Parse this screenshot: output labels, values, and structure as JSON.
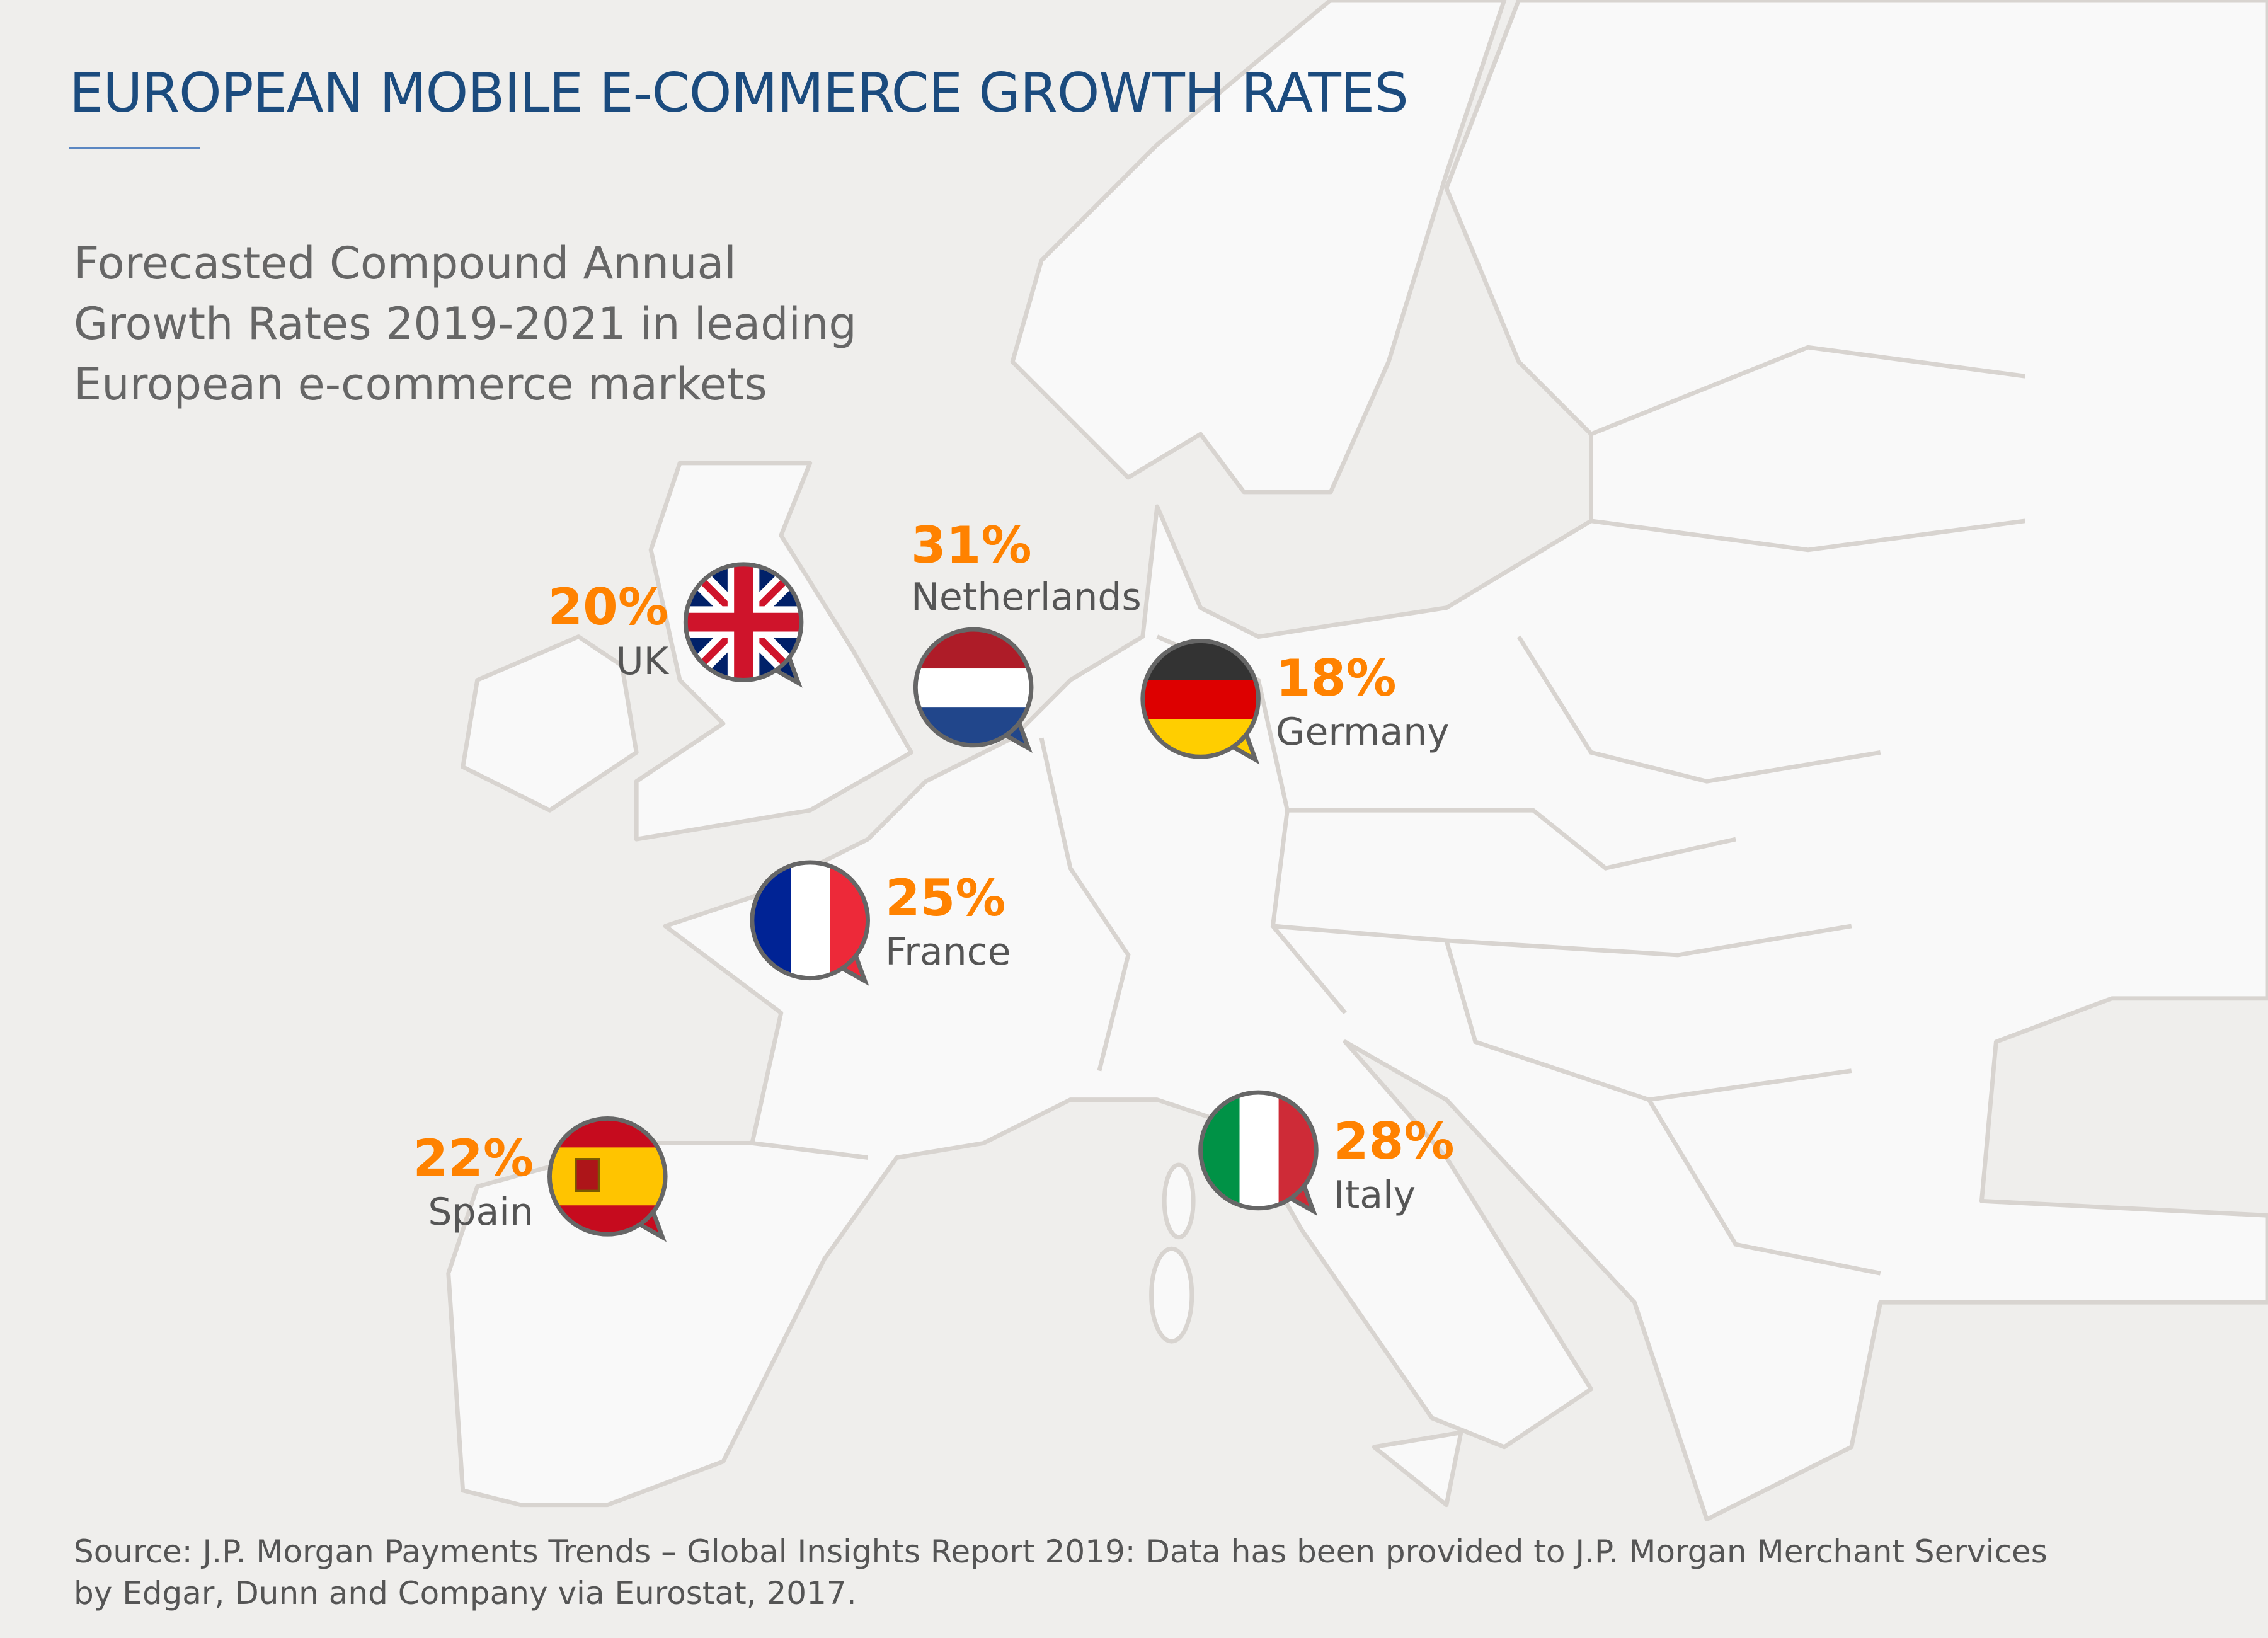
{
  "title": "EUROPEAN MOBILE E-COMMERCE GROWTH RATES",
  "subtitle": "Forecasted Compound Annual Growth Rates 2019-2021 in leading European e-commerce markets",
  "markets": [
    {
      "country": "UK",
      "rate": "20%",
      "flag": "uk-flag-icon"
    },
    {
      "country": "Netherlands",
      "rate": "31%",
      "flag": "netherlands-flag-icon"
    },
    {
      "country": "Germany",
      "rate": "18%",
      "flag": "germany-flag-icon"
    },
    {
      "country": "France",
      "rate": "25%",
      "flag": "france-flag-icon"
    },
    {
      "country": "Spain",
      "rate": "22%",
      "flag": "spain-flag-icon"
    },
    {
      "country": "Italy",
      "rate": "28%",
      "flag": "italy-flag-icon"
    }
  ],
  "colors": {
    "title": "#1b4b7e",
    "rate": "#ff8200",
    "land": "#f9f9f9",
    "sea": "#efeeec",
    "border": "#d8d4d0"
  },
  "source": "Source: J.P. Morgan Payments Trends – Global Insights Report 2019: Data has been provided to J.P. Morgan Merchant Services by Edgar, Dunn and Company via Eurostat, 2017."
}
